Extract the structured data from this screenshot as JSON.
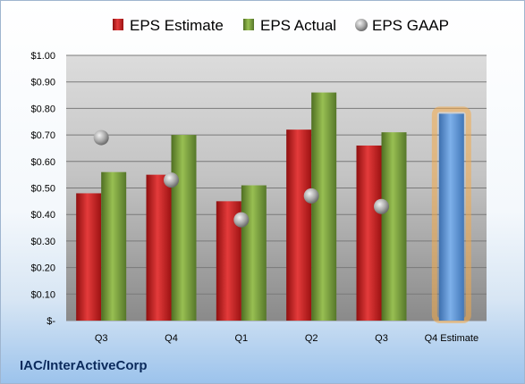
{
  "company": "IAC/InterActiveCorp",
  "colors": {
    "estimate": "#d32020",
    "actual": "#7ea33d",
    "gaap": "#a8a8a8",
    "forecast": "#5b93d6",
    "forecast_glow": "#f2a94a"
  },
  "chart_data": {
    "type": "bar",
    "categories": [
      "Q3",
      "Q4",
      "Q1",
      "Q2",
      "Q3",
      "Q4 Estimate"
    ],
    "series": [
      {
        "name": "EPS Estimate",
        "values": [
          0.48,
          0.55,
          0.45,
          0.72,
          0.66,
          null
        ]
      },
      {
        "name": "EPS Actual",
        "values": [
          0.56,
          0.7,
          0.51,
          0.86,
          0.71,
          null
        ]
      },
      {
        "name": "EPS GAAP",
        "values": [
          0.69,
          0.53,
          0.38,
          0.47,
          0.43,
          null
        ]
      }
    ],
    "forecast": {
      "category": "Q4 Estimate",
      "value": 0.78
    },
    "ylim": [
      0,
      1.0
    ],
    "yticks": [
      {
        "value": 0,
        "label": "$-"
      },
      {
        "value": 0.1,
        "label": "$0.10"
      },
      {
        "value": 0.2,
        "label": "$0.20"
      },
      {
        "value": 0.3,
        "label": "$0.30"
      },
      {
        "value": 0.4,
        "label": "$0.40"
      },
      {
        "value": 0.5,
        "label": "$0.50"
      },
      {
        "value": 0.6,
        "label": "$0.60"
      },
      {
        "value": 0.7,
        "label": "$0.70"
      },
      {
        "value": 0.8,
        "label": "$0.80"
      },
      {
        "value": 0.9,
        "label": "$0.90"
      },
      {
        "value": 1.0,
        "label": "$1.00"
      }
    ],
    "legend_position": "top",
    "grid": true
  }
}
